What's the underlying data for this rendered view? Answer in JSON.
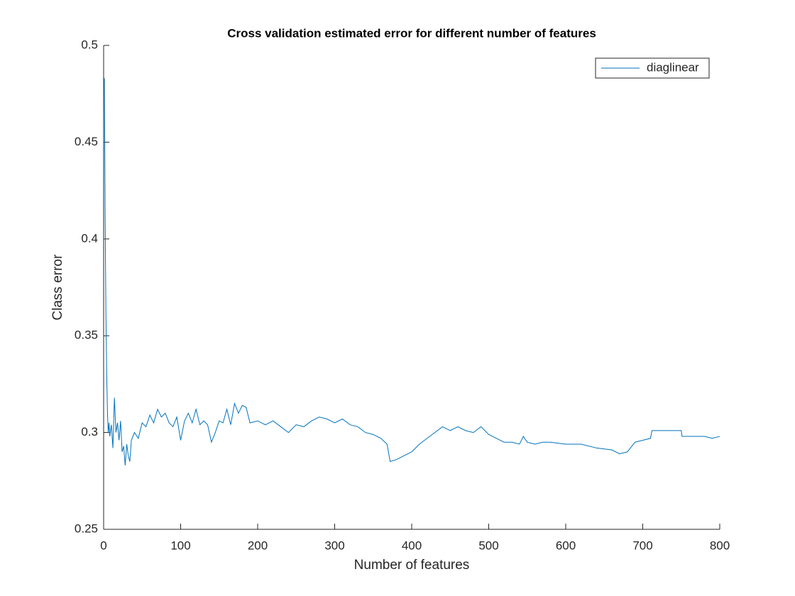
{
  "chart_data": {
    "type": "line",
    "title": "Cross validation estimated error for different number of features",
    "x_label": "Number of features",
    "y_label": "Class error",
    "xlim": [
      0,
      800
    ],
    "xticks": [
      0,
      100,
      200,
      300,
      400,
      500,
      600,
      700,
      800
    ],
    "ylim": [
      0.25,
      0.5
    ],
    "yticks": [
      0.25,
      0.3,
      0.35,
      0.4,
      0.45,
      0.5
    ],
    "legend": "northeast",
    "x": [
      1,
      2,
      3,
      4,
      5,
      6,
      7,
      8,
      10,
      12,
      14,
      16,
      18,
      20,
      22,
      24,
      26,
      28,
      30,
      32,
      34,
      36,
      40,
      45,
      50,
      55,
      60,
      65,
      70,
      75,
      80,
      85,
      90,
      95,
      100,
      105,
      110,
      115,
      120,
      125,
      130,
      135,
      140,
      145,
      150,
      155,
      160,
      165,
      170,
      175,
      180,
      185,
      190,
      200,
      210,
      220,
      230,
      240,
      250,
      260,
      270,
      280,
      290,
      300,
      310,
      320,
      330,
      340,
      350,
      360,
      368,
      372,
      380,
      390,
      400,
      410,
      420,
      430,
      440,
      450,
      460,
      470,
      480,
      490,
      500,
      510,
      520,
      530,
      540,
      545,
      550,
      560,
      570,
      580,
      600,
      620,
      640,
      660,
      670,
      680,
      690,
      700,
      710,
      712,
      750,
      751,
      780,
      790,
      800
    ],
    "series": [
      {
        "name": "diaglinear",
        "color": "#0072bd",
        "values": [
          0.483,
          0.41,
          0.36,
          0.33,
          0.31,
          0.3,
          0.305,
          0.298,
          0.304,
          0.292,
          0.318,
          0.3,
          0.305,
          0.296,
          0.306,
          0.29,
          0.293,
          0.283,
          0.294,
          0.288,
          0.285,
          0.296,
          0.3,
          0.297,
          0.305,
          0.303,
          0.309,
          0.305,
          0.312,
          0.308,
          0.31,
          0.305,
          0.303,
          0.308,
          0.296,
          0.306,
          0.31,
          0.305,
          0.312,
          0.304,
          0.306,
          0.304,
          0.295,
          0.3,
          0.306,
          0.305,
          0.312,
          0.304,
          0.315,
          0.31,
          0.314,
          0.313,
          0.305,
          0.306,
          0.304,
          0.306,
          0.303,
          0.3,
          0.304,
          0.303,
          0.306,
          0.308,
          0.307,
          0.305,
          0.307,
          0.304,
          0.303,
          0.3,
          0.299,
          0.297,
          0.294,
          0.285,
          0.286,
          0.288,
          0.29,
          0.294,
          0.297,
          0.3,
          0.303,
          0.301,
          0.303,
          0.301,
          0.3,
          0.303,
          0.299,
          0.297,
          0.295,
          0.295,
          0.294,
          0.298,
          0.295,
          0.294,
          0.295,
          0.295,
          0.294,
          0.294,
          0.292,
          0.291,
          0.289,
          0.29,
          0.295,
          0.296,
          0.297,
          0.301,
          0.301,
          0.298,
          0.298,
          0.297,
          0.298
        ]
      }
    ]
  }
}
